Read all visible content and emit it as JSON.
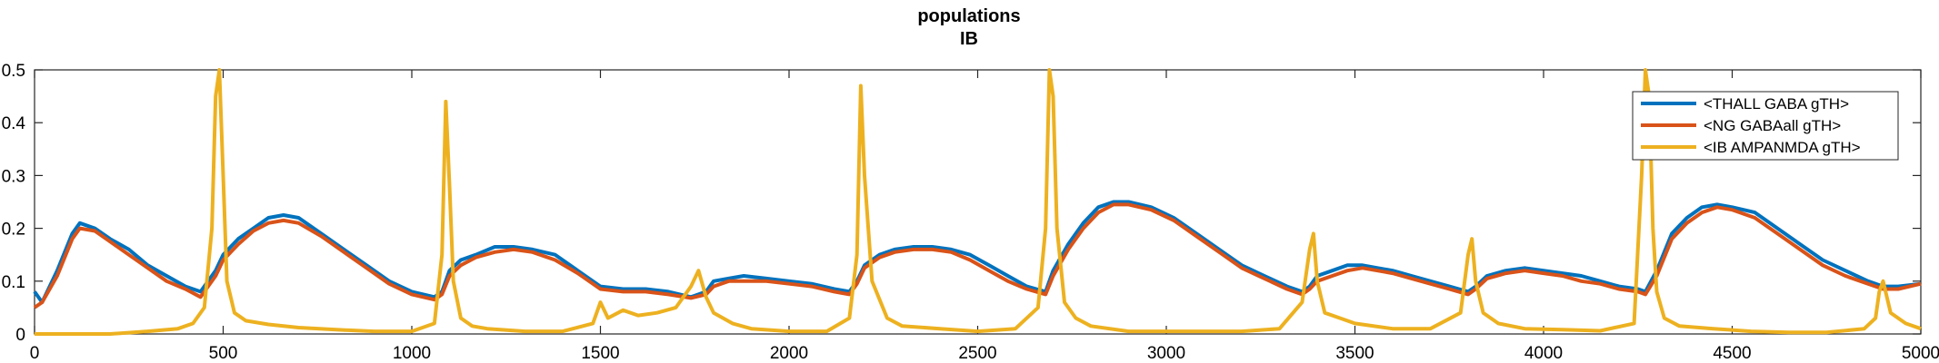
{
  "chart_data": {
    "type": "line",
    "title_lines": [
      "populations",
      "IB"
    ],
    "xlabel": "",
    "ylabel": "",
    "xlim": [
      0,
      5000
    ],
    "ylim": [
      0,
      0.5
    ],
    "x_ticks": [
      0,
      500,
      1000,
      1500,
      2000,
      2500,
      3000,
      3500,
      4000,
      4500,
      5000
    ],
    "y_ticks": [
      0,
      0.1,
      0.2,
      0.3,
      0.4,
      0.5
    ],
    "y_tick_labels": [
      "0",
      "0.1",
      "0.2",
      "0.3",
      "0.4",
      "0.5"
    ],
    "grid": false,
    "legend_location": "top-right",
    "series": [
      {
        "name": "<THALL GABA gTH>",
        "color": "#0072BD",
        "x": [
          0,
          20,
          60,
          100,
          120,
          160,
          200,
          250,
          300,
          350,
          400,
          440,
          460,
          480,
          500,
          540,
          580,
          620,
          660,
          700,
          760,
          820,
          880,
          940,
          1000,
          1060,
          1080,
          1100,
          1130,
          1170,
          1220,
          1270,
          1320,
          1380,
          1440,
          1500,
          1560,
          1620,
          1680,
          1740,
          1780,
          1800,
          1840,
          1880,
          1940,
          2000,
          2060,
          2120,
          2160,
          2180,
          2200,
          2240,
          2280,
          2330,
          2380,
          2430,
          2480,
          2530,
          2580,
          2630,
          2680,
          2700,
          2740,
          2780,
          2820,
          2860,
          2900,
          2960,
          3020,
          3080,
          3140,
          3200,
          3260,
          3320,
          3360,
          3380,
          3400,
          3440,
          3480,
          3520,
          3560,
          3600,
          3650,
          3700,
          3750,
          3800,
          3820,
          3850,
          3900,
          3950,
          4000,
          4050,
          4100,
          4150,
          4200,
          4250,
          4270,
          4300,
          4340,
          4380,
          4420,
          4460,
          4500,
          4560,
          4620,
          4680,
          4740,
          4800,
          4860,
          4900,
          4940,
          5000
        ],
        "y": [
          0.08,
          0.06,
          0.12,
          0.19,
          0.21,
          0.2,
          0.18,
          0.16,
          0.13,
          0.11,
          0.09,
          0.08,
          0.1,
          0.12,
          0.15,
          0.18,
          0.2,
          0.22,
          0.225,
          0.22,
          0.19,
          0.16,
          0.13,
          0.1,
          0.08,
          0.07,
          0.08,
          0.12,
          0.14,
          0.15,
          0.165,
          0.165,
          0.16,
          0.15,
          0.12,
          0.09,
          0.085,
          0.085,
          0.08,
          0.07,
          0.08,
          0.1,
          0.105,
          0.11,
          0.105,
          0.1,
          0.095,
          0.085,
          0.08,
          0.1,
          0.13,
          0.15,
          0.16,
          0.165,
          0.165,
          0.16,
          0.15,
          0.13,
          0.11,
          0.09,
          0.08,
          0.12,
          0.17,
          0.21,
          0.24,
          0.25,
          0.25,
          0.24,
          0.22,
          0.19,
          0.16,
          0.13,
          0.11,
          0.09,
          0.08,
          0.09,
          0.11,
          0.12,
          0.13,
          0.13,
          0.125,
          0.12,
          0.11,
          0.1,
          0.09,
          0.08,
          0.09,
          0.11,
          0.12,
          0.125,
          0.12,
          0.115,
          0.11,
          0.1,
          0.09,
          0.085,
          0.08,
          0.12,
          0.19,
          0.22,
          0.24,
          0.245,
          0.24,
          0.23,
          0.2,
          0.17,
          0.14,
          0.12,
          0.1,
          0.09,
          0.09,
          0.095
        ]
      },
      {
        "name": "<NG GABAall gTH>",
        "color": "#D95319",
        "x": [
          0,
          20,
          60,
          100,
          120,
          160,
          200,
          250,
          300,
          350,
          400,
          440,
          460,
          480,
          500,
          540,
          580,
          620,
          660,
          700,
          760,
          820,
          880,
          940,
          1000,
          1060,
          1080,
          1100,
          1130,
          1170,
          1220,
          1270,
          1320,
          1380,
          1440,
          1500,
          1560,
          1620,
          1680,
          1740,
          1780,
          1800,
          1840,
          1880,
          1940,
          2000,
          2060,
          2120,
          2160,
          2180,
          2200,
          2240,
          2280,
          2330,
          2380,
          2430,
          2480,
          2530,
          2580,
          2630,
          2680,
          2700,
          2740,
          2780,
          2820,
          2860,
          2900,
          2960,
          3020,
          3080,
          3140,
          3200,
          3260,
          3320,
          3360,
          3380,
          3400,
          3440,
          3480,
          3520,
          3560,
          3600,
          3650,
          3700,
          3750,
          3800,
          3820,
          3850,
          3900,
          3950,
          4000,
          4050,
          4100,
          4150,
          4200,
          4250,
          4270,
          4300,
          4340,
          4380,
          4420,
          4460,
          4500,
          4560,
          4620,
          4680,
          4740,
          4800,
          4860,
          4900,
          4940,
          5000
        ],
        "y": [
          0.05,
          0.06,
          0.11,
          0.18,
          0.2,
          0.195,
          0.175,
          0.15,
          0.125,
          0.1,
          0.085,
          0.07,
          0.09,
          0.11,
          0.14,
          0.17,
          0.195,
          0.21,
          0.215,
          0.21,
          0.185,
          0.155,
          0.125,
          0.095,
          0.075,
          0.065,
          0.075,
          0.11,
          0.13,
          0.145,
          0.155,
          0.16,
          0.155,
          0.14,
          0.115,
          0.085,
          0.08,
          0.08,
          0.075,
          0.068,
          0.075,
          0.09,
          0.1,
          0.1,
          0.1,
          0.095,
          0.09,
          0.08,
          0.075,
          0.095,
          0.125,
          0.145,
          0.155,
          0.16,
          0.16,
          0.155,
          0.14,
          0.12,
          0.1,
          0.085,
          0.075,
          0.11,
          0.16,
          0.2,
          0.23,
          0.245,
          0.245,
          0.235,
          0.215,
          0.185,
          0.155,
          0.125,
          0.105,
          0.085,
          0.075,
          0.085,
          0.1,
          0.11,
          0.12,
          0.125,
          0.12,
          0.115,
          0.105,
          0.095,
          0.085,
          0.075,
          0.085,
          0.105,
          0.115,
          0.12,
          0.115,
          0.11,
          0.1,
          0.095,
          0.085,
          0.08,
          0.075,
          0.11,
          0.18,
          0.21,
          0.23,
          0.24,
          0.235,
          0.22,
          0.19,
          0.16,
          0.13,
          0.11,
          0.095,
          0.085,
          0.085,
          0.095
        ]
      },
      {
        "name": "<IB AMPANMDA gTH>",
        "color": "#EDB120",
        "x": [
          0,
          100,
          200,
          300,
          380,
          420,
          450,
          470,
          480,
          490,
          500,
          510,
          530,
          560,
          620,
          700,
          800,
          900,
          1000,
          1060,
          1080,
          1090,
          1100,
          1110,
          1130,
          1160,
          1200,
          1300,
          1400,
          1480,
          1500,
          1520,
          1560,
          1600,
          1650,
          1700,
          1740,
          1760,
          1780,
          1800,
          1850,
          1900,
          2000,
          2100,
          2160,
          2180,
          2190,
          2200,
          2220,
          2260,
          2300,
          2400,
          2500,
          2600,
          2660,
          2680,
          2690,
          2700,
          2710,
          2730,
          2760,
          2800,
          2900,
          3000,
          3100,
          3200,
          3300,
          3360,
          3380,
          3390,
          3400,
          3420,
          3460,
          3500,
          3600,
          3700,
          3780,
          3800,
          3810,
          3820,
          3840,
          3880,
          3950,
          4050,
          4150,
          4240,
          4260,
          4270,
          4280,
          4290,
          4300,
          4320,
          4360,
          4450,
          4550,
          4650,
          4750,
          4850,
          4880,
          4890,
          4900,
          4920,
          4960,
          5000
        ],
        "y": [
          0.0,
          0.0,
          0.0,
          0.005,
          0.01,
          0.02,
          0.05,
          0.2,
          0.45,
          0.5,
          0.3,
          0.1,
          0.04,
          0.025,
          0.018,
          0.012,
          0.008,
          0.005,
          0.005,
          0.02,
          0.15,
          0.44,
          0.28,
          0.1,
          0.03,
          0.015,
          0.01,
          0.005,
          0.005,
          0.02,
          0.06,
          0.03,
          0.045,
          0.035,
          0.04,
          0.05,
          0.09,
          0.12,
          0.07,
          0.04,
          0.02,
          0.01,
          0.005,
          0.005,
          0.03,
          0.15,
          0.47,
          0.3,
          0.1,
          0.03,
          0.015,
          0.01,
          0.005,
          0.01,
          0.05,
          0.2,
          0.5,
          0.45,
          0.2,
          0.06,
          0.03,
          0.015,
          0.005,
          0.005,
          0.005,
          0.005,
          0.01,
          0.06,
          0.16,
          0.19,
          0.1,
          0.04,
          0.03,
          0.02,
          0.01,
          0.01,
          0.04,
          0.15,
          0.18,
          0.1,
          0.04,
          0.02,
          0.01,
          0.008,
          0.006,
          0.02,
          0.3,
          0.5,
          0.45,
          0.2,
          0.08,
          0.03,
          0.015,
          0.01,
          0.005,
          0.003,
          0.003,
          0.01,
          0.03,
          0.08,
          0.1,
          0.04,
          0.02,
          0.01
        ]
      }
    ]
  }
}
